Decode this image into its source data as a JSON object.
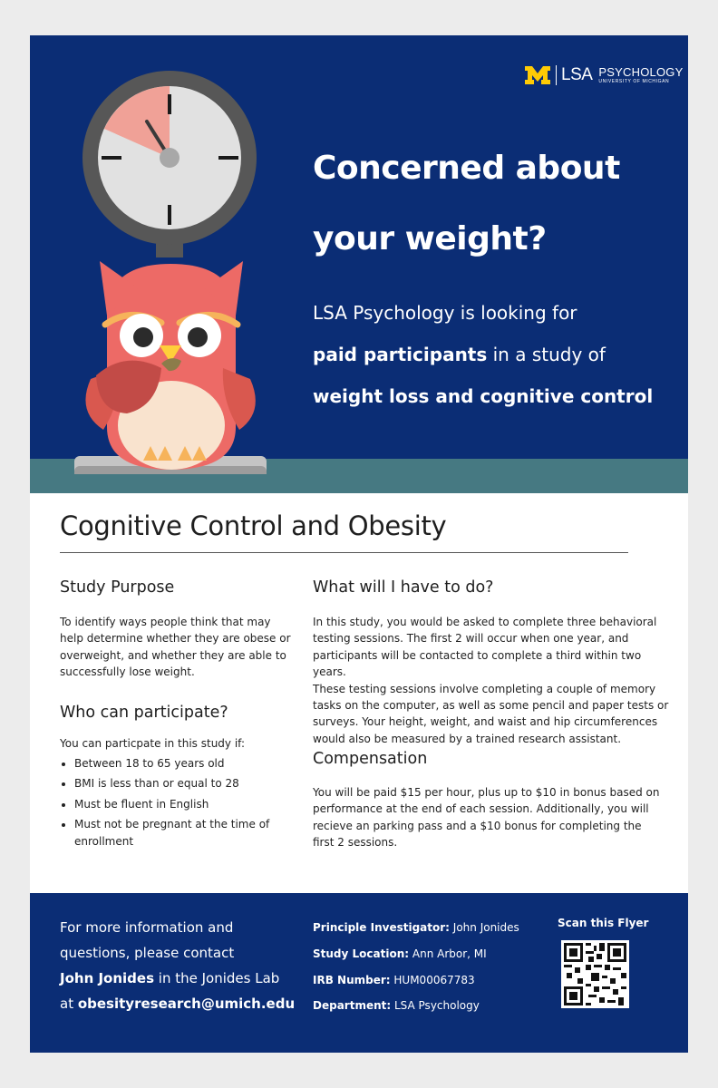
{
  "logo": {
    "brand": "LSA",
    "department": "PSYCHOLOGY",
    "university": "UNIVERSITY OF MICHIGAN",
    "colors": {
      "maize": "#ffcb05",
      "blue": "#0b2d75"
    }
  },
  "hero": {
    "headline_line1": "Concerned about",
    "headline_line2": "your weight?",
    "sub1": "LSA Psychology is looking for",
    "sub2_bold": "paid participants",
    "sub2_rest": " in a study of",
    "sub3_bold": "weight loss and cognitive control",
    "illustration": [
      "clock-scale-icon",
      "owl-icon"
    ]
  },
  "main_title": "Cognitive Control and Obesity",
  "study_purpose": {
    "heading": "Study Purpose",
    "lines": [
      "To identify ways people think that may",
      "help determine whether they are obese or",
      "overweight, and whether they are able to",
      "successfully lose weight."
    ]
  },
  "who": {
    "heading": "Who can participate?",
    "intro": "You can particpate in this study if:",
    "bullets": [
      "Between 18 to 65 years old",
      "BMI is less than or equal to 28",
      "Must be fluent in English",
      "Must not be pregnant at the time of enrollment"
    ]
  },
  "what": {
    "heading": "What will I have to do?",
    "lines": [
      "In this study, you would be asked to complete three behavioral",
      "testing sessions. The first 2 will occur when one year, and",
      "participants will be contacted to complete a third within two years.",
      "These testing sessions involve completing a couple of memory",
      "tasks on the computer, as well as some pencil and paper tests or",
      "surveys. Your height, weight, and waist and hip circumferences",
      "would also be measured by a trained research assistant."
    ]
  },
  "compensation": {
    "heading": "Compensation",
    "lines": [
      "You will be paid $15 per hour, plus up to $10 in bonus based on",
      "performance at the end of each session. Additionally, you will",
      "recieve an parking pass and a $10 bonus for completing the",
      "first 2 sessions."
    ]
  },
  "footer": {
    "contact_line1": "For more information and",
    "contact_line2": "questions, please contact",
    "contact_name": "John Jonides",
    "contact_lab": " in the Jonides Lab",
    "contact_at": "at ",
    "contact_email": "obesityresearch@umich.edu",
    "pi_label": "Principle Investigator:",
    "pi_value": " John Jonides",
    "loc_label": "Study Location:",
    "loc_value": " Ann Arbor, MI",
    "irb_label": "IRB Number:",
    "irb_value": " HUM00067783",
    "dept_label": "Department:",
    "dept_value": " LSA Psychology",
    "scan_label": "Scan this Flyer"
  }
}
